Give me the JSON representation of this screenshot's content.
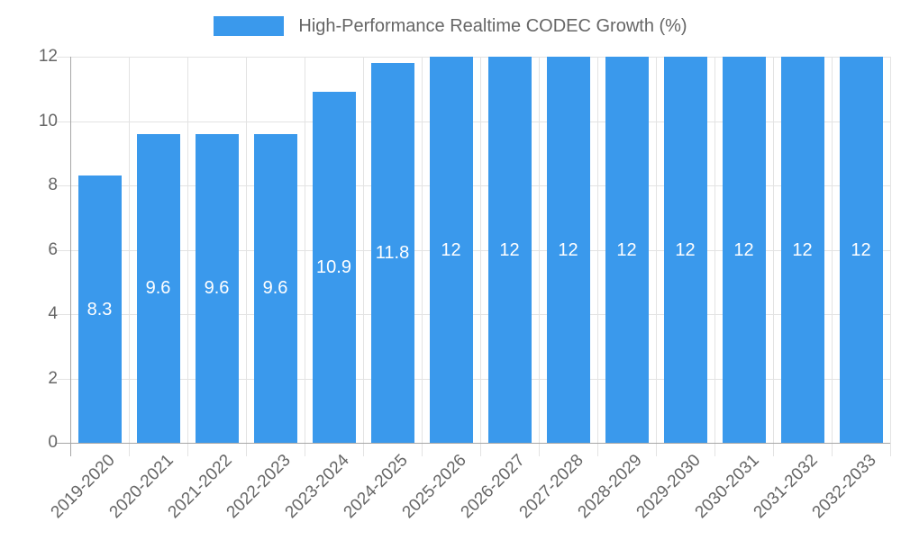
{
  "chart_data": {
    "type": "bar",
    "title": "High-Performance Realtime CODEC Growth (%)",
    "categories": [
      "2019-2020",
      "2020-2021",
      "2021-2022",
      "2022-2023",
      "2023-2024",
      "2024-2025",
      "2025-2026",
      "2026-2027",
      "2027-2028",
      "2028-2029",
      "2029-2030",
      "2030-2031",
      "2031-2032",
      "2032-2033"
    ],
    "values": [
      8.3,
      9.6,
      9.6,
      9.6,
      10.9,
      11.8,
      12,
      12,
      12,
      12,
      12,
      12,
      12,
      12
    ],
    "value_labels": [
      "8.3",
      "9.6",
      "9.6",
      "9.6",
      "10.9",
      "11.8",
      "12",
      "12",
      "12",
      "12",
      "12",
      "12",
      "12",
      "12"
    ],
    "y_ticks": [
      0,
      2,
      4,
      6,
      8,
      10,
      12
    ],
    "ylim": [
      0,
      12
    ],
    "xlabel": "",
    "ylabel": "",
    "grid": true,
    "legend_position": "top",
    "value_labels_position": "center-of-bar",
    "x_tick_rotation_deg": -45,
    "colors": {
      "bar": "#3a99ec",
      "value_label": "#ffffff",
      "axis_text": "#666666",
      "legend_text": "#666666",
      "gridline": "#e3e3e3",
      "axis_line": "#a6a6a6",
      "background": "#ffffff"
    }
  }
}
